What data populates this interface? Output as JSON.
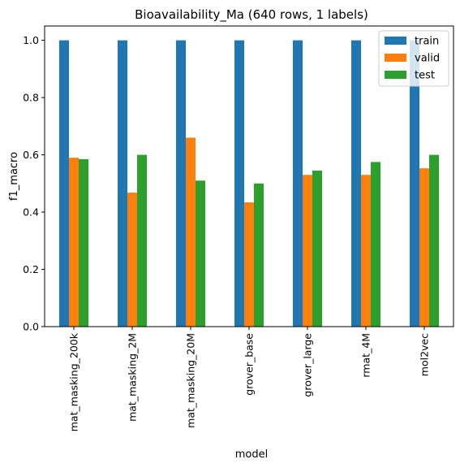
{
  "chart_data": {
    "type": "bar",
    "title": "Bioavailability_Ma (640 rows, 1 labels)",
    "xlabel": "model",
    "ylabel": "f1_macro",
    "ylim": [
      0,
      1.05
    ],
    "yticks": [
      "0.0",
      "0.2",
      "0.4",
      "0.6",
      "0.8",
      "1.0"
    ],
    "categories": [
      "mat_masking_200k",
      "mat_masking_2M",
      "mat_masking_20M",
      "grover_base",
      "grover_large",
      "rmat_4M",
      "mol2vec"
    ],
    "series": [
      {
        "name": "train",
        "color": "#1f77b4",
        "values": [
          1.0,
          1.0,
          1.0,
          1.0,
          1.0,
          1.0,
          1.0
        ]
      },
      {
        "name": "valid",
        "color": "#ff7f0e",
        "values": [
          0.59,
          0.468,
          0.66,
          0.434,
          0.53,
          0.53,
          0.553
        ]
      },
      {
        "name": "test",
        "color": "#2ca02c",
        "values": [
          0.585,
          0.6,
          0.51,
          0.5,
          0.545,
          0.575,
          0.6
        ]
      }
    ],
    "grid": false,
    "legend_position": "top-right"
  }
}
